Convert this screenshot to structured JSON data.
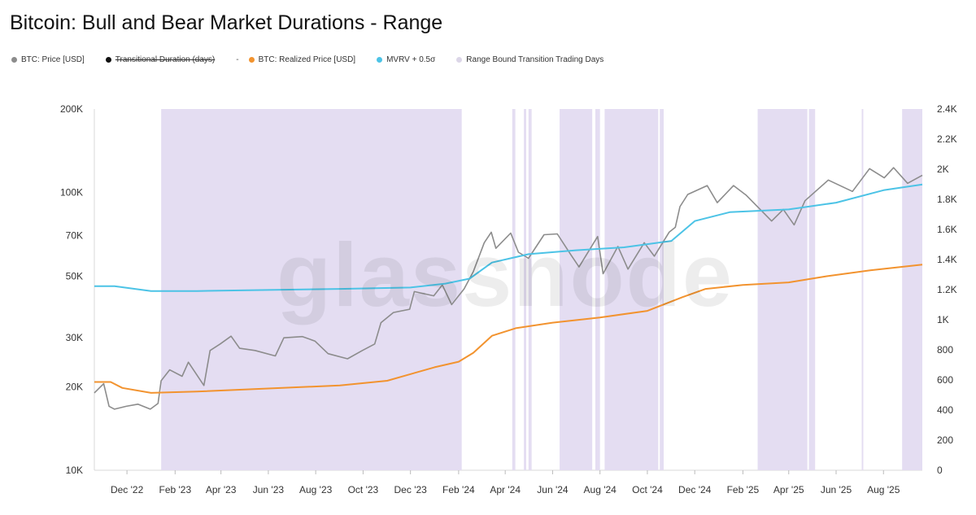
{
  "page": {
    "title": "Bitcoin: Bull and Bear Market Durations - Range"
  },
  "legend": [
    {
      "label": "BTC: Price [USD]",
      "color": "#8c8c8c",
      "struck": false
    },
    {
      "label": "Transitional Duration (days)",
      "color": "#111111",
      "struck": true
    },
    {
      "label": "BTC: Realized Price [USD]",
      "color": "#f2932f",
      "struck": false,
      "prefix": "-"
    },
    {
      "label": "MVRV + 0.5σ",
      "color": "#4cc3e6",
      "struck": false
    },
    {
      "label": "Range Bound Transition Trading Days",
      "color": "#dcd6e8",
      "struck": false
    }
  ],
  "watermark": "glassnode",
  "chart_data": {
    "type": "line",
    "x_range": [
      "2022-10-20",
      "2025-09-20"
    ],
    "y_left": {
      "scale": "log",
      "range": [
        10000,
        200000
      ],
      "ticks": [
        10000,
        20000,
        30000,
        50000,
        70000,
        100000,
        200000
      ],
      "tick_labels": [
        "10K",
        "20K",
        "30K",
        "50K",
        "70K",
        "100K",
        "200K"
      ]
    },
    "y_right": {
      "scale": "linear",
      "range": [
        0,
        2400
      ],
      "ticks": [
        0,
        200,
        400,
        600,
        800,
        1000,
        1200,
        1400,
        1600,
        1800,
        2000,
        2200,
        2400
      ],
      "tick_labels": [
        "0",
        "200",
        "400",
        "600",
        "800",
        "1K",
        "1.2K",
        "1.4K",
        "1.6K",
        "1.8K",
        "2K",
        "2.2K",
        "2.4K"
      ]
    },
    "x_ticks": [
      {
        "date": "2022-12-01",
        "label": "Dec '22"
      },
      {
        "date": "2023-02-01",
        "label": "Feb '23"
      },
      {
        "date": "2023-04-01",
        "label": "Apr '23"
      },
      {
        "date": "2023-06-01",
        "label": "Jun '23"
      },
      {
        "date": "2023-08-01",
        "label": "Aug '23"
      },
      {
        "date": "2023-10-01",
        "label": "Oct '23"
      },
      {
        "date": "2023-12-01",
        "label": "Dec '23"
      },
      {
        "date": "2024-02-01",
        "label": "Feb '24"
      },
      {
        "date": "2024-04-01",
        "label": "Apr '24"
      },
      {
        "date": "2024-06-01",
        "label": "Jun '24"
      },
      {
        "date": "2024-08-01",
        "label": "Aug '24"
      },
      {
        "date": "2024-10-01",
        "label": "Oct '24"
      },
      {
        "date": "2024-12-01",
        "label": "Dec '24"
      },
      {
        "date": "2025-02-01",
        "label": "Feb '25"
      },
      {
        "date": "2025-04-01",
        "label": "Apr '25"
      },
      {
        "date": "2025-06-01",
        "label": "Jun '25"
      },
      {
        "date": "2025-08-01",
        "label": "Aug '25"
      }
    ],
    "series": [
      {
        "name": "BTC: Price [USD]",
        "color": "#8c8c8c",
        "axis": "left",
        "points": [
          [
            "2022-10-20",
            19000
          ],
          [
            "2022-11-01",
            20500
          ],
          [
            "2022-11-08",
            17000
          ],
          [
            "2022-11-15",
            16600
          ],
          [
            "2022-11-30",
            17000
          ],
          [
            "2022-12-15",
            17300
          ],
          [
            "2022-12-31",
            16600
          ],
          [
            "2023-01-10",
            17400
          ],
          [
            "2023-01-14",
            21000
          ],
          [
            "2023-01-25",
            23000
          ],
          [
            "2023-02-10",
            21800
          ],
          [
            "2023-02-18",
            24500
          ],
          [
            "2023-03-10",
            20200
          ],
          [
            "2023-03-18",
            27000
          ],
          [
            "2023-03-31",
            28500
          ],
          [
            "2023-04-14",
            30400
          ],
          [
            "2023-04-25",
            27500
          ],
          [
            "2023-05-15",
            27000
          ],
          [
            "2023-06-10",
            25800
          ],
          [
            "2023-06-21",
            30000
          ],
          [
            "2023-07-15",
            30300
          ],
          [
            "2023-07-31",
            29200
          ],
          [
            "2023-08-17",
            26300
          ],
          [
            "2023-09-11",
            25200
          ],
          [
            "2023-09-30",
            27000
          ],
          [
            "2023-10-16",
            28500
          ],
          [
            "2023-10-24",
            34000
          ],
          [
            "2023-11-09",
            37000
          ],
          [
            "2023-11-30",
            38000
          ],
          [
            "2023-12-06",
            44000
          ],
          [
            "2023-12-31",
            42500
          ],
          [
            "2024-01-11",
            46500
          ],
          [
            "2024-01-23",
            39500
          ],
          [
            "2024-02-08",
            45000
          ],
          [
            "2024-02-20",
            52000
          ],
          [
            "2024-03-05",
            66000
          ],
          [
            "2024-03-14",
            72000
          ],
          [
            "2024-03-20",
            63000
          ],
          [
            "2024-04-08",
            71500
          ],
          [
            "2024-04-18",
            61000
          ],
          [
            "2024-05-01",
            58000
          ],
          [
            "2024-05-21",
            70500
          ],
          [
            "2024-06-07",
            71000
          ],
          [
            "2024-06-24",
            60000
          ],
          [
            "2024-07-05",
            54000
          ],
          [
            "2024-07-29",
            69500
          ],
          [
            "2024-08-05",
            51000
          ],
          [
            "2024-08-24",
            64000
          ],
          [
            "2024-09-06",
            53000
          ],
          [
            "2024-09-27",
            66000
          ],
          [
            "2024-10-10",
            59000
          ],
          [
            "2024-10-29",
            72000
          ],
          [
            "2024-11-06",
            75000
          ],
          [
            "2024-11-12",
            89000
          ],
          [
            "2024-11-22",
            98500
          ],
          [
            "2024-12-17",
            106000
          ],
          [
            "2024-12-30",
            92000
          ],
          [
            "2025-01-20",
            106000
          ],
          [
            "2025-02-05",
            98000
          ],
          [
            "2025-02-25",
            86000
          ],
          [
            "2025-03-10",
            79000
          ],
          [
            "2025-03-25",
            87000
          ],
          [
            "2025-04-08",
            76500
          ],
          [
            "2025-04-22",
            93500
          ],
          [
            "2025-05-22",
            111000
          ],
          [
            "2025-06-22",
            101000
          ],
          [
            "2025-07-14",
            122000
          ],
          [
            "2025-08-02",
            113000
          ],
          [
            "2025-08-14",
            123000
          ],
          [
            "2025-09-01",
            108000
          ],
          [
            "2025-09-20",
            115500
          ]
        ]
      },
      {
        "name": "BTC: Realized Price [USD]",
        "color": "#f2932f",
        "axis": "left",
        "points": [
          [
            "2022-10-20",
            20800
          ],
          [
            "2022-11-10",
            20800
          ],
          [
            "2022-11-25",
            19800
          ],
          [
            "2023-01-01",
            19000
          ],
          [
            "2023-03-01",
            19200
          ],
          [
            "2023-06-01",
            19700
          ],
          [
            "2023-09-01",
            20200
          ],
          [
            "2023-11-01",
            21000
          ],
          [
            "2024-01-01",
            23500
          ],
          [
            "2024-02-01",
            24600
          ],
          [
            "2024-02-20",
            26500
          ],
          [
            "2024-03-15",
            30500
          ],
          [
            "2024-04-15",
            32500
          ],
          [
            "2024-06-01",
            34000
          ],
          [
            "2024-08-01",
            35500
          ],
          [
            "2024-10-01",
            37500
          ],
          [
            "2024-11-15",
            42000
          ],
          [
            "2024-12-15",
            45000
          ],
          [
            "2025-02-01",
            46500
          ],
          [
            "2025-04-01",
            47500
          ],
          [
            "2025-05-20",
            50000
          ],
          [
            "2025-07-15",
            52500
          ],
          [
            "2025-09-20",
            55000
          ]
        ]
      },
      {
        "name": "MVRV + 0.5σ",
        "color": "#4cc3e6",
        "axis": "left",
        "points": [
          [
            "2022-10-20",
            46000
          ],
          [
            "2022-11-15",
            46000
          ],
          [
            "2023-01-01",
            44200
          ],
          [
            "2023-03-01",
            44200
          ],
          [
            "2023-06-01",
            44600
          ],
          [
            "2023-09-01",
            45000
          ],
          [
            "2023-12-01",
            45500
          ],
          [
            "2024-01-15",
            47000
          ],
          [
            "2024-02-15",
            49000
          ],
          [
            "2024-03-15",
            56000
          ],
          [
            "2024-05-01",
            60000
          ],
          [
            "2024-07-01",
            62000
          ],
          [
            "2024-09-01",
            63500
          ],
          [
            "2024-11-01",
            67000
          ],
          [
            "2024-12-01",
            79000
          ],
          [
            "2025-01-15",
            85000
          ],
          [
            "2025-04-01",
            87000
          ],
          [
            "2025-06-01",
            92000
          ],
          [
            "2025-08-01",
            102000
          ],
          [
            "2025-09-20",
            107000
          ]
        ]
      }
    ],
    "range_bound_periods": [
      [
        "2023-01-14",
        "2024-02-05"
      ],
      [
        "2024-04-10",
        "2024-04-14"
      ],
      [
        "2024-04-25",
        "2024-04-28"
      ],
      [
        "2024-05-01",
        "2024-05-05"
      ],
      [
        "2024-06-10",
        "2024-07-22"
      ],
      [
        "2024-07-26",
        "2024-08-01"
      ],
      [
        "2024-08-07",
        "2024-10-15"
      ],
      [
        "2024-10-17",
        "2024-10-22"
      ],
      [
        "2025-02-20",
        "2025-04-25"
      ],
      [
        "2025-04-27",
        "2025-05-05"
      ],
      [
        "2025-07-04",
        "2025-07-06"
      ],
      [
        "2025-08-25",
        "2025-09-20"
      ]
    ]
  }
}
